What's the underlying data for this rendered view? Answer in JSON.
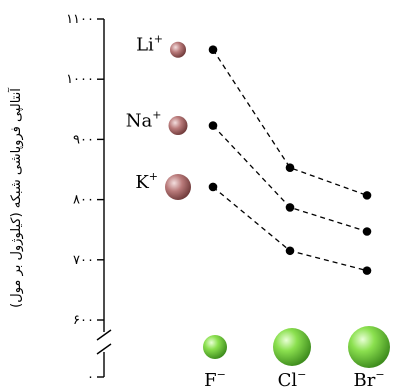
{
  "chart_data": {
    "type": "line",
    "ylabel": "آنتالپی فروپاشی شبکه (کیلوژول بر مول)",
    "yticks": [
      {
        "value": 0,
        "label": "۰"
      },
      {
        "value": 600,
        "label": "۶۰۰"
      },
      {
        "value": 700,
        "label": "۷۰۰"
      },
      {
        "value": 800,
        "label": "۸۰۰"
      },
      {
        "value": 900,
        "label": "۹۰۰"
      },
      {
        "value": 1000,
        "label": "۱۰۰۰"
      },
      {
        "value": 1100,
        "label": "۱۱۰۰"
      }
    ],
    "ylim": [
      600,
      1100
    ],
    "axis_break": true,
    "categories": [
      {
        "symbol": "F",
        "charge": "−",
        "ball_color": "#6fcf4a"
      },
      {
        "symbol": "Cl",
        "charge": "−",
        "ball_color": "#6fcf4a"
      },
      {
        "symbol": "Br",
        "charge": "−",
        "ball_color": "#6fcf4a"
      }
    ],
    "series": [
      {
        "symbol": "Li",
        "charge": "+",
        "ball_color": "#b06f6f",
        "values": [
          1049,
          853,
          807
        ]
      },
      {
        "symbol": "Na",
        "charge": "+",
        "ball_color": "#b06f6f",
        "values": [
          923,
          787,
          747
        ]
      },
      {
        "symbol": "K",
        "charge": "+",
        "ball_color": "#b06f6f",
        "values": [
          821,
          715,
          682
        ]
      }
    ]
  }
}
